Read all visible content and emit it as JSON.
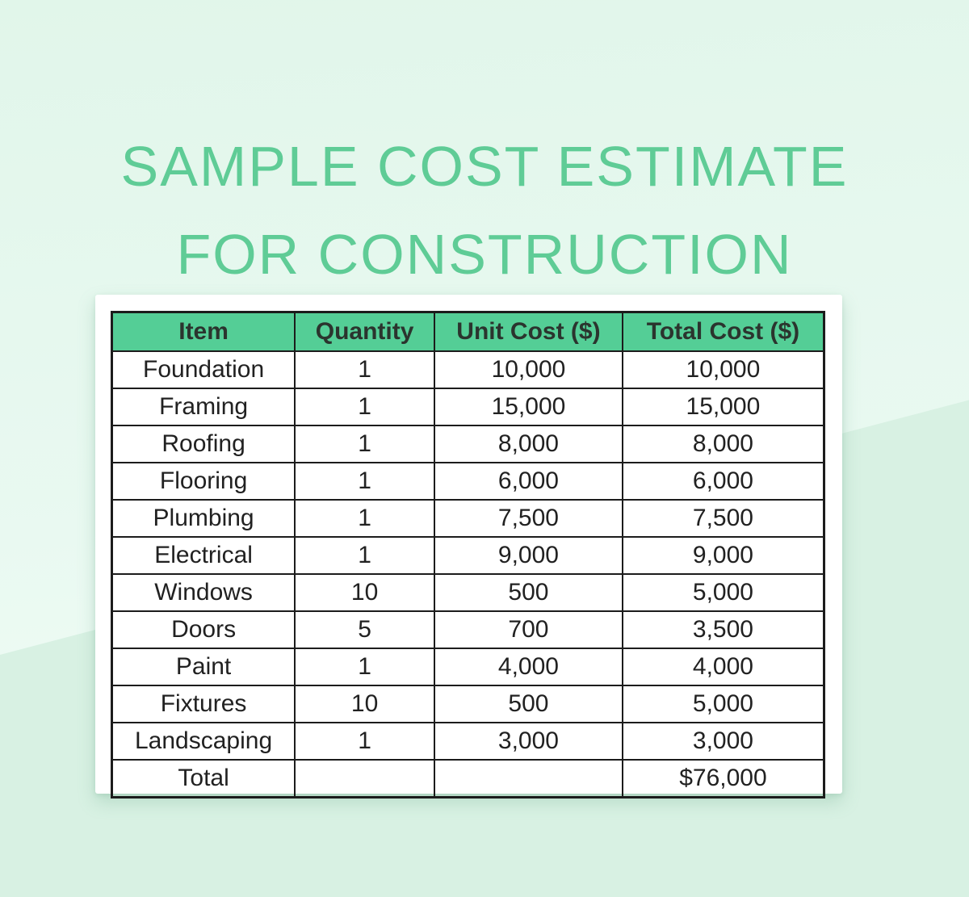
{
  "title": {
    "line1": "SAMPLE COST ESTIMATE",
    "line2": "FOR CONSTRUCTION"
  },
  "colors": {
    "title_green": "#5fcc96",
    "header_green": "#54ce96",
    "background_top": "#e9f9f1",
    "background_bottom": "#d8f1e3",
    "table_border": "#1c1c1c",
    "cell_text": "#212121"
  },
  "table": {
    "headers": [
      "Item",
      "Quantity",
      "Unit Cost ($)",
      "Total Cost ($)"
    ],
    "rows": [
      [
        "Foundation",
        "1",
        "10,000",
        "10,000"
      ],
      [
        "Framing",
        "1",
        "15,000",
        "15,000"
      ],
      [
        "Roofing",
        "1",
        "8,000",
        "8,000"
      ],
      [
        "Flooring",
        "1",
        "6,000",
        "6,000"
      ],
      [
        "Plumbing",
        "1",
        "7,500",
        "7,500"
      ],
      [
        "Electrical",
        "1",
        "9,000",
        "9,000"
      ],
      [
        "Windows",
        "10",
        "500",
        "5,000"
      ],
      [
        "Doors",
        "5",
        "700",
        "3,500"
      ],
      [
        "Paint",
        "1",
        "4,000",
        "4,000"
      ],
      [
        "Fixtures",
        "10",
        "500",
        "5,000"
      ],
      [
        "Landscaping",
        "1",
        "3,000",
        "3,000"
      ],
      [
        "Total",
        "",
        "",
        "$76,000"
      ]
    ]
  }
}
